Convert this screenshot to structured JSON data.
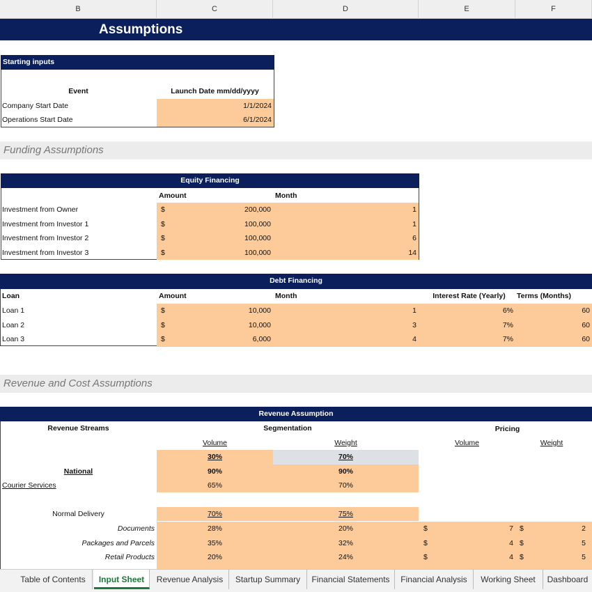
{
  "columns": [
    "B",
    "C",
    "D",
    "E",
    "F"
  ],
  "title": "Assumptions",
  "starting": {
    "header": "Starting inputs",
    "col_event": "Event",
    "col_date": "Launch Date mm/dd/yyyy",
    "rows": [
      {
        "event": "Company Start Date",
        "date": "1/1/2024"
      },
      {
        "event": "Operations Start Date",
        "date": "6/1/2024"
      }
    ]
  },
  "funding_title": "Funding Assumptions",
  "equity": {
    "header": "Equity Financing",
    "col_amount": "Amount",
    "col_month": "Month",
    "rows": [
      {
        "name": "Investment from Owner",
        "cur": "$",
        "amount": "200,000",
        "month": "1"
      },
      {
        "name": "Investment from Investor 1",
        "cur": "$",
        "amount": "100,000",
        "month": "1"
      },
      {
        "name": "Investment from Investor 2",
        "cur": "$",
        "amount": "100,000",
        "month": "6"
      },
      {
        "name": "Investment from Investor 3",
        "cur": "$",
        "amount": "100,000",
        "month": "14"
      }
    ]
  },
  "debt": {
    "header": "Debt Financing",
    "col_loan": "Loan",
    "col_amount": "Amount",
    "col_month": "Month",
    "col_rate": "Interest Rate (Yearly)",
    "col_terms": "Terms (Months)",
    "rows": [
      {
        "name": "Loan 1",
        "cur": "$",
        "amount": "10,000",
        "month": "1",
        "rate": "6%",
        "terms": "60"
      },
      {
        "name": "Loan 2",
        "cur": "$",
        "amount": "10,000",
        "month": "3",
        "rate": "7%",
        "terms": "60"
      },
      {
        "name": "Loan 3",
        "cur": "$",
        "amount": "6,000",
        "month": "4",
        "rate": "7%",
        "terms": "60"
      }
    ]
  },
  "revenue_title": "Revenue and Cost Assumptions",
  "revenue": {
    "header": "Revenue Assumption",
    "col_streams": "Revenue Streams",
    "col_seg": "Segmentation",
    "col_pricing": "Pricing",
    "sub_volume": "Volume",
    "sub_weight": "Weight",
    "split_volume": "30%",
    "split_weight": "70%",
    "national": {
      "label": "National",
      "volume": "90%",
      "weight": "90%"
    },
    "courier": {
      "label": "Courier Services",
      "volume": "65%",
      "weight": "70%"
    },
    "normal": {
      "label": "Normal Delivery",
      "volume": "70%",
      "weight": "75%"
    },
    "items": [
      {
        "name": "Documents",
        "volume": "28%",
        "weight": "20%",
        "cur": "$",
        "price_volume": "7",
        "price_weight": "2"
      },
      {
        "name": "Packages and Parcels",
        "volume": "35%",
        "weight": "32%",
        "cur": "$",
        "price_volume": "4",
        "price_weight": "5"
      },
      {
        "name": "Retail Products",
        "volume": "20%",
        "weight": "24%",
        "cur": "$",
        "price_volume": "4",
        "price_weight": "5"
      }
    ]
  },
  "tabs": [
    "Table of Contents",
    "Input Sheet",
    "Revenue Analysis",
    "Startup Summary",
    "Financial Statements",
    "Financial Analysis",
    "Working Sheet",
    "Dashboard"
  ],
  "active_tab": "Input Sheet"
}
